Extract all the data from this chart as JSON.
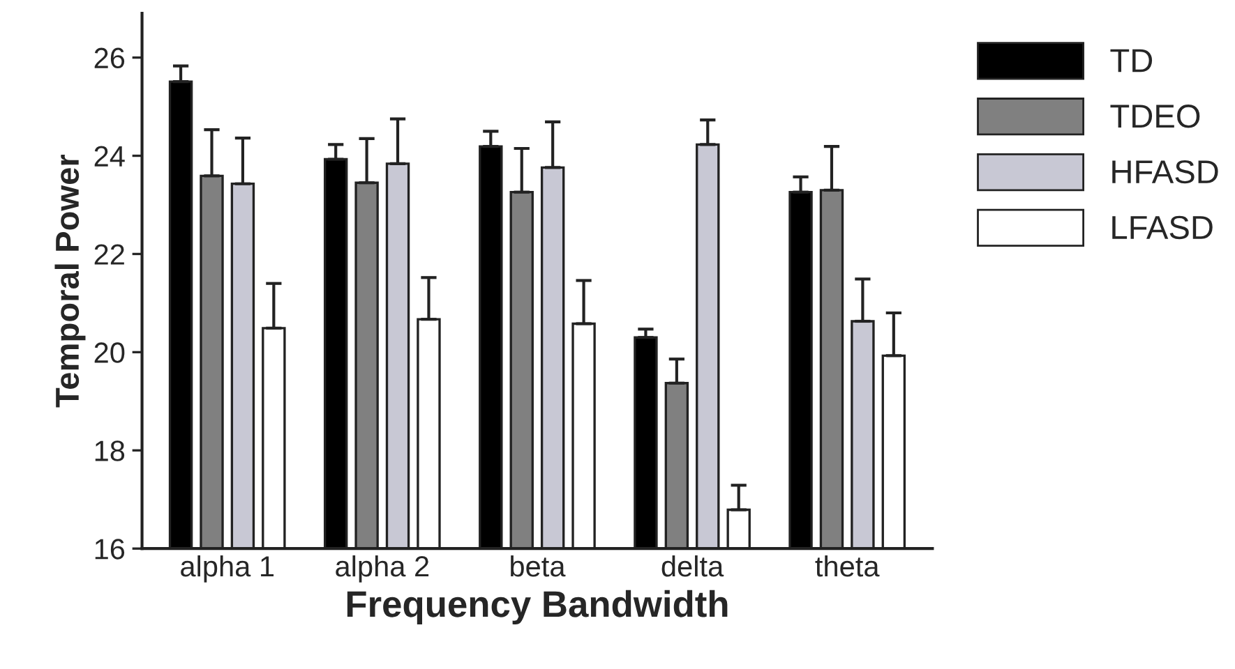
{
  "chart_data": {
    "type": "bar",
    "xlabel": "Frequency Bandwidth",
    "ylabel": "Temporal Power",
    "categories": [
      "alpha 1",
      "alpha 2",
      "beta",
      "delta",
      "theta"
    ],
    "series": [
      {
        "name": "TD",
        "color": "#000000",
        "values": [
          25.51,
          23.93,
          24.19,
          20.3,
          23.26
        ],
        "errors": [
          [
            25.51,
            25.83
          ],
          [
            23.93,
            24.23
          ],
          [
            24.19,
            24.5
          ],
          [
            20.3,
            20.47
          ],
          [
            23.26,
            23.57
          ]
        ]
      },
      {
        "name": "TDEO",
        "color": "#808080",
        "values": [
          23.59,
          23.45,
          23.26,
          19.37,
          23.3
        ],
        "errors": [
          [
            23.59,
            24.53
          ],
          [
            23.45,
            24.35
          ],
          [
            23.26,
            24.15
          ],
          [
            19.37,
            19.86
          ],
          [
            23.3,
            24.19
          ]
        ]
      },
      {
        "name": "HFASD",
        "color": "#c8c8d4",
        "values": [
          23.43,
          23.84,
          23.76,
          24.23,
          20.63
        ],
        "errors": [
          [
            23.43,
            24.36
          ],
          [
            23.84,
            24.75
          ],
          [
            23.76,
            24.69
          ],
          [
            24.23,
            24.73
          ],
          [
            20.63,
            21.49
          ]
        ]
      },
      {
        "name": "LFASD",
        "color": "#ffffff",
        "values": [
          20.49,
          20.67,
          20.58,
          16.79,
          19.93
        ],
        "errors": [
          [
            20.49,
            21.4
          ],
          [
            20.67,
            21.52
          ],
          [
            20.58,
            21.46
          ],
          [
            16.79,
            17.29
          ],
          [
            19.93,
            20.8
          ]
        ]
      }
    ],
    "ylim": [
      16,
      26.9
    ],
    "yticks": [
      16,
      18,
      20,
      22,
      24,
      26
    ],
    "grid": false,
    "legend": "top right"
  }
}
